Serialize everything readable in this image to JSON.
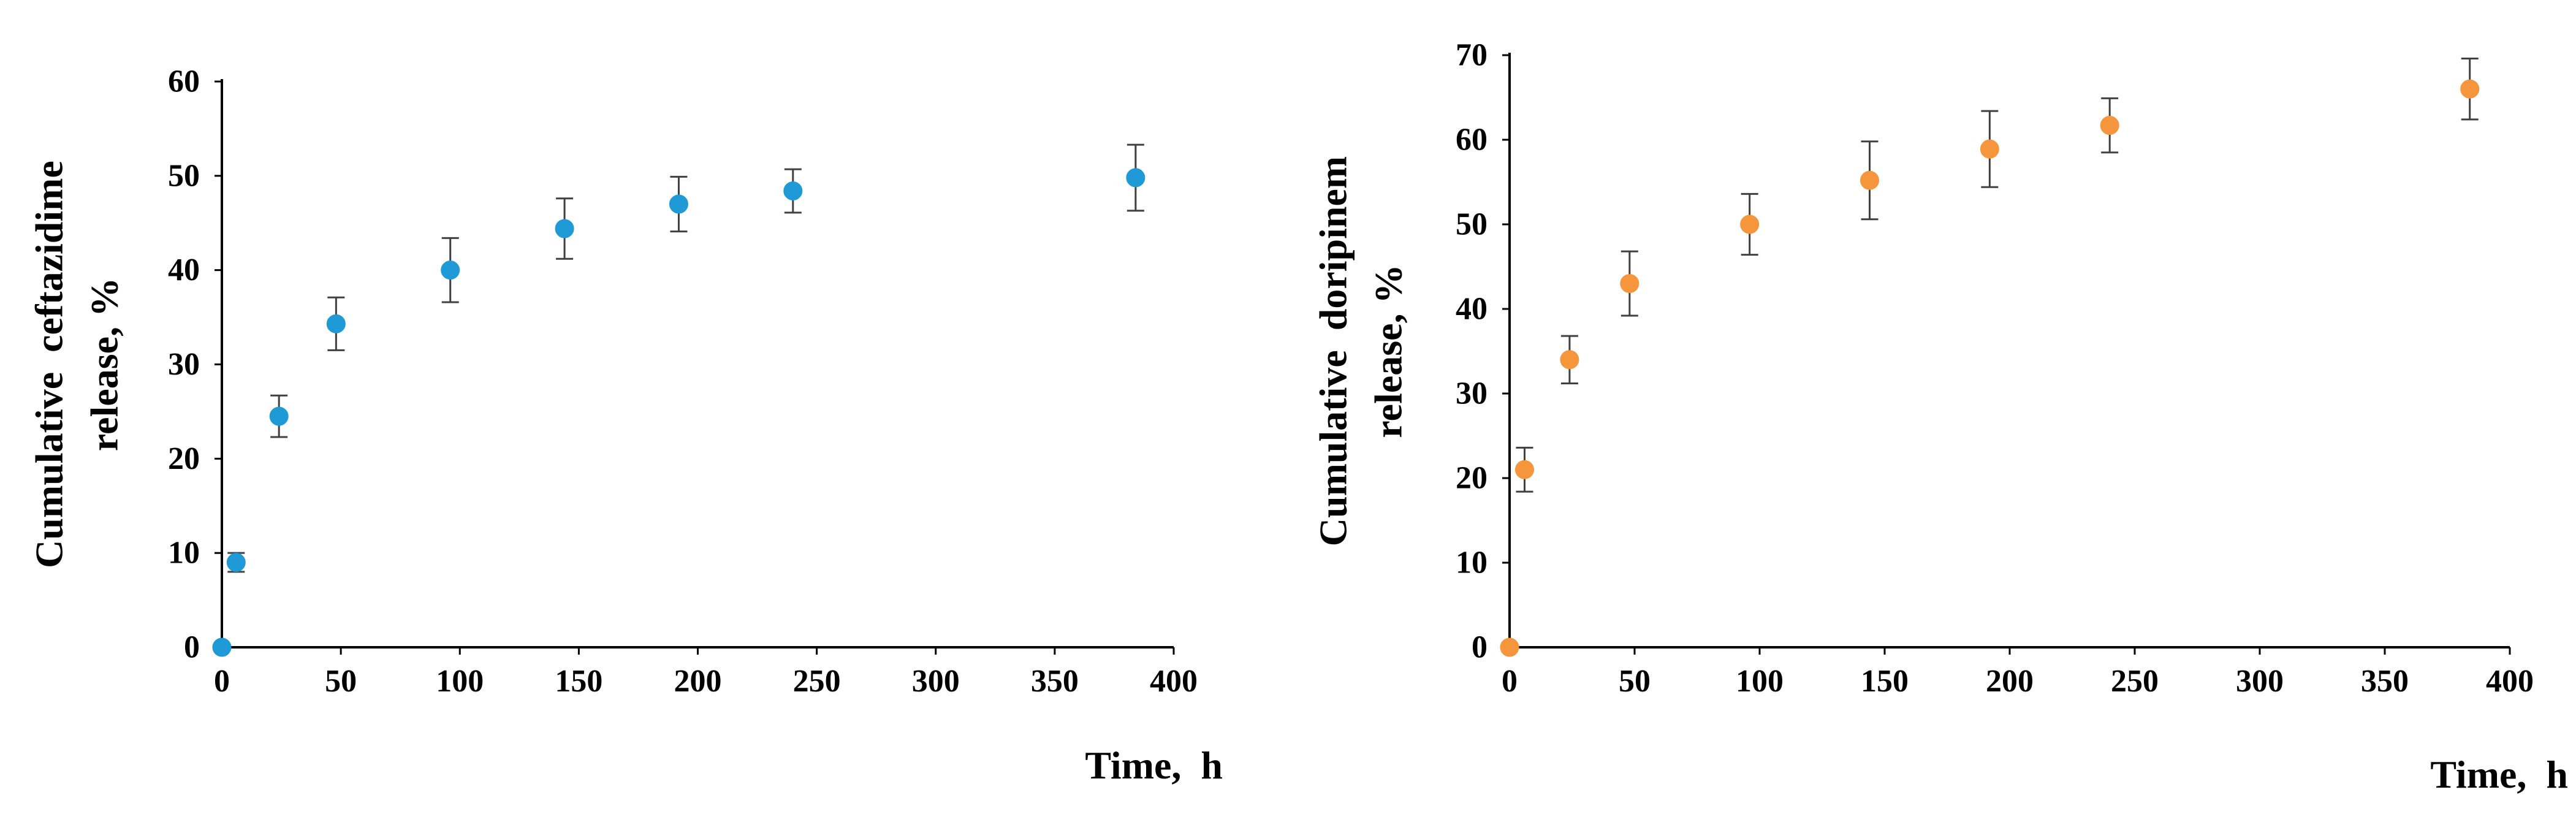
{
  "chart_data": [
    {
      "type": "scatter",
      "title": "",
      "xlabel": "Time,  h",
      "ylabel": "Cumulative  ceftazidime release, %",
      "ylabel_lines": [
        "Cumulative  ceftazidime",
        "release, %"
      ],
      "xlim": [
        0,
        400
      ],
      "ylim": [
        0,
        60
      ],
      "x_ticks": [
        0,
        50,
        100,
        150,
        200,
        250,
        300,
        350,
        400
      ],
      "y_ticks": [
        0,
        10,
        20,
        30,
        40,
        50,
        60
      ],
      "grid": false,
      "legend": "none",
      "series": [
        {
          "color": "#1f9ad6",
          "x": [
            0,
            6,
            24,
            48,
            96,
            144,
            192,
            240,
            384
          ],
          "y": [
            0,
            9,
            24.5,
            34.3,
            40,
            44.4,
            47,
            48.4,
            49.8
          ],
          "error": [
            0,
            1.0,
            2.2,
            2.8,
            3.4,
            3.2,
            2.9,
            2.3,
            3.5
          ]
        }
      ]
    },
    {
      "type": "scatter",
      "title": "",
      "xlabel": "Time,  h",
      "ylabel": "Cumulative  doripinem release, %",
      "ylabel_lines": [
        "Cumulative  doripinem",
        "release, %"
      ],
      "xlim": [
        0,
        400
      ],
      "ylim": [
        0,
        70
      ],
      "x_ticks": [
        0,
        50,
        100,
        150,
        200,
        250,
        300,
        350,
        400
      ],
      "y_ticks": [
        0,
        10,
        20,
        30,
        40,
        50,
        60,
        70
      ],
      "grid": false,
      "legend": "none",
      "series": [
        {
          "color": "#f5963c",
          "x": [
            0,
            6,
            24,
            48,
            96,
            144,
            192,
            240,
            384
          ],
          "y": [
            0,
            21,
            34,
            43,
            50,
            55.2,
            58.9,
            61.7,
            66
          ],
          "error": [
            0,
            2.6,
            2.8,
            3.8,
            3.6,
            4.6,
            4.5,
            3.2,
            3.6
          ]
        }
      ]
    }
  ]
}
